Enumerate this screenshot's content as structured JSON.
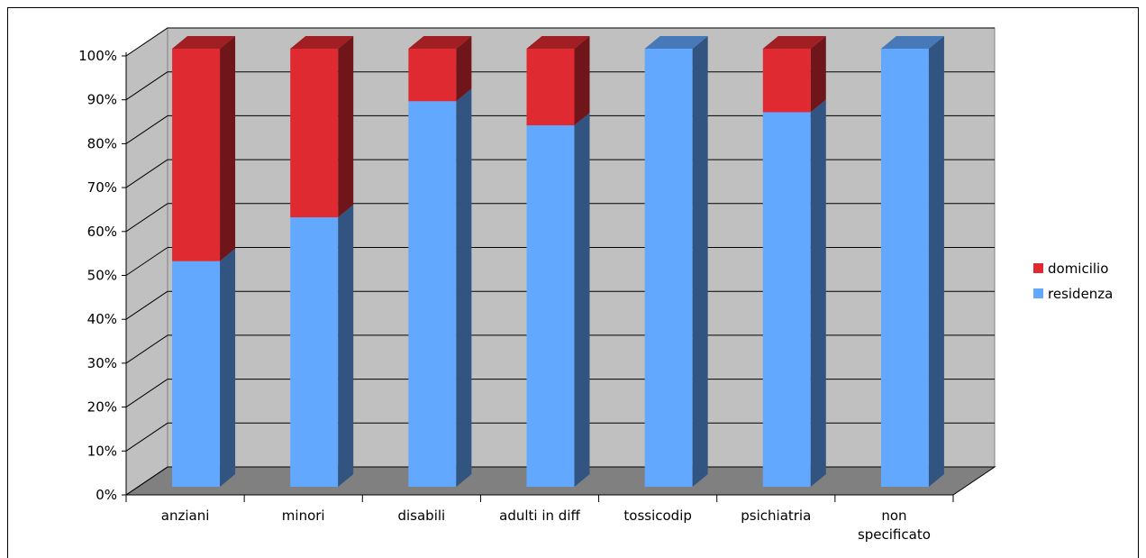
{
  "chart_data": {
    "type": "bar",
    "stacked": true,
    "percent": true,
    "three_d": true,
    "categories": [
      "anziani",
      "minori",
      "disabili",
      "adulti in diff",
      "tossicodip",
      "psichiatria",
      [
        "non",
        "specificato"
      ]
    ],
    "series": [
      {
        "name": "residenza",
        "color": "#62a8ff",
        "values": [
          51.5,
          61.5,
          88,
          82.5,
          100,
          85.5,
          100
        ]
      },
      {
        "name": "domicilio",
        "color": "#e02a31",
        "values": [
          48.5,
          38.5,
          12,
          17.5,
          0,
          14.5,
          0
        ]
      }
    ],
    "y_ticks": [
      "0%",
      "10%",
      "20%",
      "30%",
      "40%",
      "50%",
      "60%",
      "70%",
      "80%",
      "90%",
      "100%"
    ],
    "ylim": [
      0,
      100
    ],
    "grid": true,
    "legend_position": "right",
    "legend_order": [
      "domicilio",
      "residenza"
    ],
    "colors": {
      "wall": "#c0c0c0",
      "floor": "#808080",
      "grid": "#000000"
    }
  }
}
